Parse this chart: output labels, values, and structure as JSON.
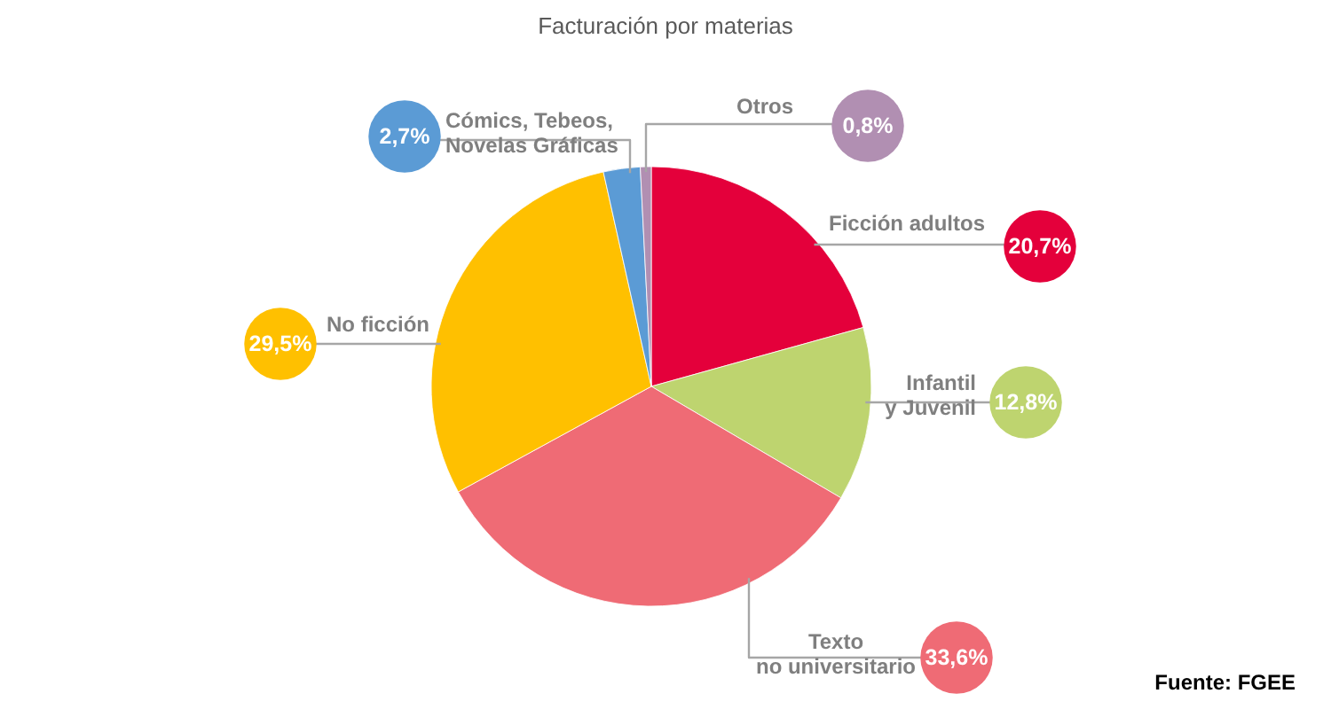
{
  "chart_data": {
    "type": "pie",
    "title": "Facturación por materias",
    "categories": [
      "Ficción adultos",
      "Infantil\ny Juvenil",
      "Texto\nno universitario",
      "No ficción",
      "Cómics, Tebeos,\nNovelas Gráficas",
      "Otros"
    ],
    "values": [
      20.7,
      12.8,
      33.6,
      29.5,
      2.7,
      0.8
    ],
    "colors": [
      "#e4003b",
      "#bed46f",
      "#ef6b75",
      "#ffc000",
      "#5b9bd5",
      "#b18fb2"
    ],
    "value_labels": [
      "20,7%",
      "12,8%",
      "33,6%",
      "29,5%",
      "2,7%",
      "0,8%"
    ],
    "annotations": [
      "Fuente: FGEE"
    ]
  }
}
